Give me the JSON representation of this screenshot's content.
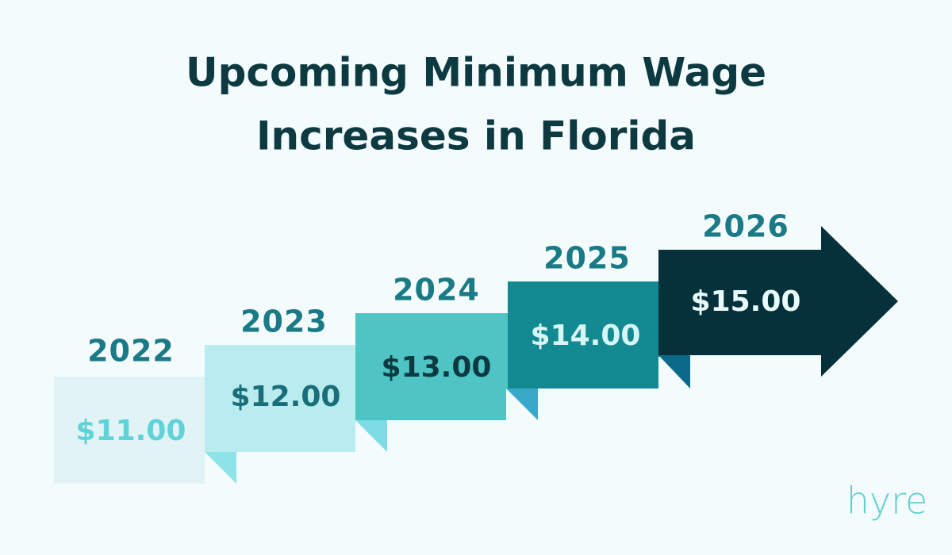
{
  "title": {
    "lines": [
      "Upcoming Minimum Wage",
      "Increases in Florida"
    ]
  },
  "steps": [
    {
      "year": "2022",
      "wage": "$11.00"
    },
    {
      "year": "2023",
      "wage": "$12.00"
    },
    {
      "year": "2024",
      "wage": "$13.00"
    },
    {
      "year": "2025",
      "wage": "$14.00"
    },
    {
      "year": "2026",
      "wage": "$15.00"
    }
  ],
  "logo": "hyre"
}
